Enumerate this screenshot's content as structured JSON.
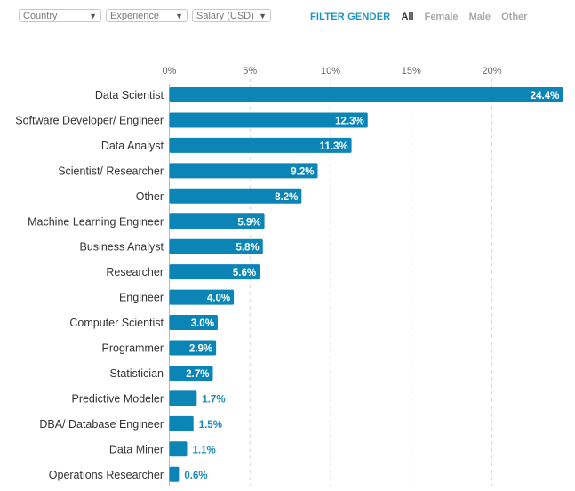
{
  "filters": {
    "country": {
      "value": "Country"
    },
    "experience": {
      "value": "Experience"
    },
    "salary": {
      "value": "Salary (USD)"
    }
  },
  "gender_filter": {
    "label": "FILTER GENDER",
    "options": [
      "All",
      "Female",
      "Male",
      "Other"
    ],
    "selected": "All"
  },
  "colors": {
    "bar": "#0a85b6",
    "label_inside": "#ffffff",
    "label_outside": "#1a8bb8",
    "grid": "#d9d9d9",
    "category_text": "#333333",
    "tick_text": "#666666"
  },
  "icons": {
    "dropdown": "caret-down-icon"
  },
  "chart_data": {
    "type": "bar",
    "orientation": "horizontal",
    "categories": [
      "Data Scientist",
      "Software Developer/ Engineer",
      "Data Analyst",
      "Scientist/ Researcher",
      "Other",
      "Machine Learning Engineer",
      "Business Analyst",
      "Researcher",
      "Engineer",
      "Computer Scientist",
      "Programmer",
      "Statistician",
      "Predictive Modeler",
      "DBA/ Database Engineer",
      "Data Miner",
      "Operations Researcher"
    ],
    "values": [
      24.4,
      12.3,
      11.3,
      9.2,
      8.2,
      5.9,
      5.8,
      5.6,
      4.0,
      3.0,
      2.9,
      2.7,
      1.7,
      1.5,
      1.1,
      0.6
    ],
    "value_labels": [
      "24.4%",
      "12.3%",
      "11.3%",
      "9.2%",
      "8.2%",
      "5.9%",
      "5.8%",
      "5.6%",
      "4.0%",
      "3.0%",
      "2.9%",
      "2.7%",
      "1.7%",
      "1.5%",
      "1.1%",
      "0.6%"
    ],
    "x_ticks": [
      0,
      5,
      10,
      15,
      20
    ],
    "x_tick_labels": [
      "0%",
      "5%",
      "10%",
      "15%",
      "20%"
    ],
    "xlim": [
      0,
      25
    ],
    "grid": true,
    "legend": "none"
  }
}
